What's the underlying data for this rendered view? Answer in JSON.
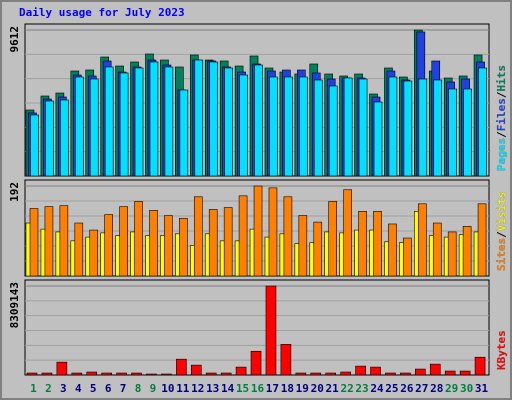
{
  "chart_data": {
    "type": "bar",
    "title": "Daily usage for July 2023",
    "categories": [
      "1",
      "2",
      "3",
      "4",
      "5",
      "6",
      "7",
      "8",
      "9",
      "10",
      "11",
      "12",
      "13",
      "14",
      "15",
      "16",
      "17",
      "18",
      "19",
      "20",
      "21",
      "22",
      "23",
      "24",
      "25",
      "26",
      "27",
      "28",
      "29",
      "30",
      "31"
    ],
    "category_colors": [
      "#008040",
      "#008040",
      "#000080",
      "#000080",
      "#000080",
      "#000080",
      "#000080",
      "#008040",
      "#008040",
      "#000080",
      "#000080",
      "#000080",
      "#000080",
      "#000080",
      "#008040",
      "#008040",
      "#000080",
      "#000080",
      "#000080",
      "#000080",
      "#000080",
      "#008040",
      "#008040",
      "#000080",
      "#000080",
      "#000080",
      "#000080",
      "#000080",
      "#008040",
      "#008040",
      "#000080"
    ],
    "legend_separator": "/",
    "panels": [
      {
        "ylim": [
          0,
          9612
        ],
        "yticks": [
          9612
        ],
        "series": [
          {
            "name": "Hits",
            "color": "#00805c",
            "values": [
              4345,
              5267,
              5465,
              6913,
              6979,
              7835,
              7242,
              7506,
              8032,
              7637,
              7177,
              7967,
              7637,
              7572,
              7242,
              7901,
              7111,
              6847,
              6716,
              7374,
              6716,
              6584,
              6716,
              5399,
              7111,
              6518,
              9612,
              6913,
              6452,
              6584,
              7967
            ]
          },
          {
            "name": "Files",
            "color": "#2040e0",
            "values": [
              4148,
              5070,
              5201,
              6650,
              6584,
              7572,
              6847,
              7177,
              7637,
              7308,
              5662,
              7637,
              7572,
              7177,
              6847,
              7374,
              6913,
              6979,
              6979,
              6782,
              6386,
              6452,
              6452,
              5201,
              6913,
              6321,
              9481,
              7572,
              6189,
              6386,
              7506
            ]
          },
          {
            "name": "Pages",
            "color": "#00e0ff",
            "values": [
              4016,
              4938,
              5004,
              6518,
              6386,
              7177,
              6782,
              7111,
              7506,
              7177,
              5662,
              7637,
              7506,
              7111,
              6650,
              7308,
              6518,
              6518,
              6518,
              6321,
              5926,
              6452,
              6386,
              4872,
              6518,
              6255,
              6386,
              6321,
              5728,
              5728,
              7111
            ]
          }
        ]
      },
      {
        "ylim": [
          0,
          192
        ],
        "yticks": [
          192
        ],
        "series": [
          {
            "name": "Visits",
            "color": "#ffff00",
            "values": [
              113,
              100,
              94,
              75,
              83,
              92,
              86,
              94,
              86,
              86,
              90,
              65,
              90,
              75,
              75,
              100,
              83,
              90,
              69,
              71,
              94,
              92,
              98,
              98,
              73,
              71,
              138,
              86,
              83,
              88,
              94
            ]
          },
          {
            "name": "Sites",
            "color": "#ff8000",
            "values": [
              144,
              148,
              150,
              113,
              98,
              131,
              148,
              159,
              140,
              129,
              123,
              169,
              142,
              146,
              171,
              192,
              188,
              169,
              129,
              115,
              159,
              184,
              138,
              138,
              111,
              81,
              154,
              113,
              94,
              106,
              154
            ]
          }
        ]
      },
      {
        "ylim": [
          0,
          8309143
        ],
        "yticks": [
          8309143
        ],
        "series": [
          {
            "name": "KBytes",
            "color": "#ff0000",
            "values": [
              184648,
              184648,
              1200212,
              184648,
              276972,
              184648,
              184648,
              184648,
              92324,
              92324,
              1477184,
              923240,
              184648,
              184648,
              738592,
              2215776,
              8309143,
              2862044,
              184648,
              184648,
              184648,
              276972,
              830916,
              738592,
              184648,
              184648,
              553944,
              1015564,
              369296,
              369296,
              1661832
            ]
          }
        ]
      }
    ]
  }
}
